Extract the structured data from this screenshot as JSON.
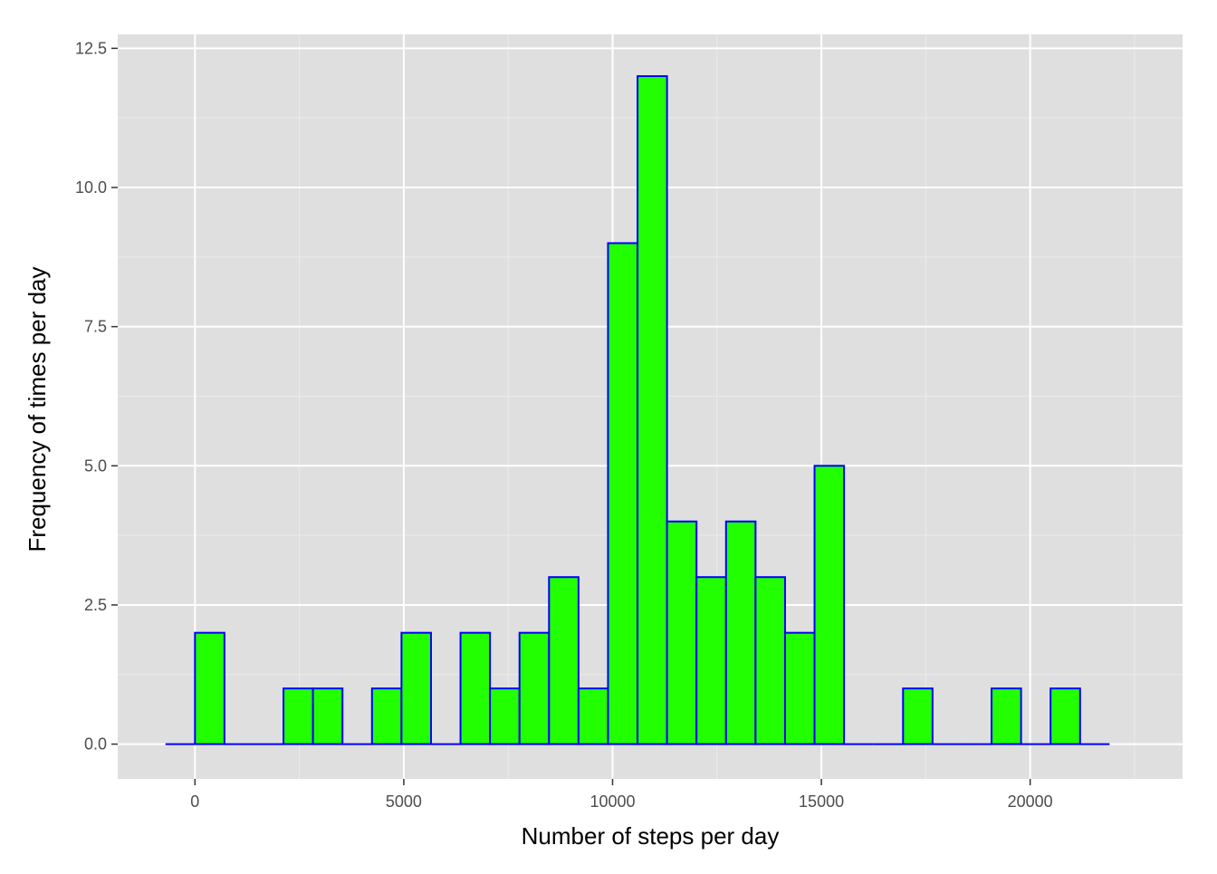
{
  "chart_data": {
    "type": "bar",
    "title": "",
    "xlabel": "Number of steps per day",
    "ylabel": "Frequency of times per day",
    "xlim": [
      -1850,
      23650
    ],
    "ylim": [
      -0.625,
      12.75
    ],
    "x_ticks": [
      0,
      5000,
      10000,
      15000,
      20000
    ],
    "x_tick_labels": [
      "0",
      "5000",
      "10000",
      "15000",
      "20000"
    ],
    "y_ticks": [
      0,
      2.5,
      5,
      7.5,
      10,
      12.5
    ],
    "y_tick_labels": [
      "0.0",
      "2.5",
      "5.0",
      "7.5",
      "10.0",
      "12.5"
    ],
    "grid": true,
    "bin_width": 706.5,
    "bin_start": -706.5,
    "values": [
      0,
      2,
      0,
      0,
      1,
      1,
      0,
      1,
      2,
      0,
      2,
      1,
      2,
      3,
      1,
      9,
      12,
      4,
      3,
      4,
      3,
      2,
      5,
      0,
      0,
      1,
      0,
      0,
      1,
      0,
      1,
      0
    ],
    "colors": {
      "fill": "#22ff00",
      "outline": "#0000ff",
      "panel": "#dfdfdf",
      "grid_major": "#ffffff",
      "grid_minor": "#ebebeb"
    }
  }
}
